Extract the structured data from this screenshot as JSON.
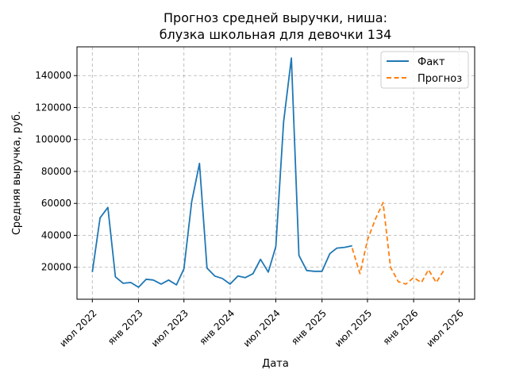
{
  "chart_data": {
    "type": "line",
    "title_lines": [
      "Прогноз средней выручки, ниша:",
      "блузка школьная для девочки 134"
    ],
    "xlabel": "Дата",
    "ylabel": "Средняя выручка, руб.",
    "grid": true,
    "legend_position": "top-right",
    "xlim": [
      "2022-05-01",
      "2026-09-01"
    ],
    "ylim": [
      0,
      158000
    ],
    "x_ticks": [
      {
        "date": "2022-07-01",
        "label": "июл 2022"
      },
      {
        "date": "2023-01-01",
        "label": "янв 2023"
      },
      {
        "date": "2023-07-01",
        "label": "июл 2023"
      },
      {
        "date": "2024-01-01",
        "label": "янв 2024"
      },
      {
        "date": "2024-07-01",
        "label": "июл 2024"
      },
      {
        "date": "2025-01-01",
        "label": "янв 2025"
      },
      {
        "date": "2025-07-01",
        "label": "июл 2025"
      },
      {
        "date": "2026-01-01",
        "label": "янв 2026"
      },
      {
        "date": "2026-07-01",
        "label": "июл 2026"
      }
    ],
    "y_ticks": [
      20000,
      40000,
      60000,
      80000,
      100000,
      120000,
      140000
    ],
    "series": [
      {
        "name": "Факт",
        "color": "#1f77b4",
        "dash": "solid",
        "x": [
          "2022-07-01",
          "2022-08-01",
          "2022-09-01",
          "2022-10-01",
          "2022-11-01",
          "2022-12-01",
          "2023-01-01",
          "2023-02-01",
          "2023-03-01",
          "2023-04-01",
          "2023-05-01",
          "2023-06-01",
          "2023-07-01",
          "2023-08-01",
          "2023-09-01",
          "2023-10-01",
          "2023-11-01",
          "2023-12-01",
          "2024-01-01",
          "2024-02-01",
          "2024-03-01",
          "2024-04-01",
          "2024-05-01",
          "2024-06-01",
          "2024-07-01",
          "2024-08-01",
          "2024-09-01",
          "2024-10-01",
          "2024-11-01",
          "2024-12-01",
          "2025-01-01",
          "2025-02-01",
          "2025-03-01",
          "2025-04-01",
          "2025-05-01"
        ],
        "y": [
          17000,
          51000,
          57500,
          14000,
          10000,
          10500,
          7500,
          12500,
          12000,
          9500,
          12000,
          9000,
          19000,
          61000,
          85000,
          19500,
          14500,
          13000,
          9500,
          14500,
          13500,
          16000,
          25000,
          17000,
          33000,
          111000,
          151000,
          27500,
          18000,
          17500,
          17500,
          28500,
          32000,
          32500,
          33500
        ]
      },
      {
        "name": "Прогноз",
        "color": "#ff7f0e",
        "dash": "dashed",
        "x": [
          "2025-05-01",
          "2025-06-01",
          "2025-07-01",
          "2025-08-01",
          "2025-09-01",
          "2025-10-01",
          "2025-11-01",
          "2025-12-01",
          "2026-01-01",
          "2026-02-01",
          "2026-03-01",
          "2026-04-01",
          "2026-05-01"
        ],
        "y": [
          32000,
          16000,
          37000,
          50000,
          60500,
          20000,
          11000,
          9500,
          13500,
          10500,
          18500,
          10500,
          18000
        ]
      }
    ]
  }
}
